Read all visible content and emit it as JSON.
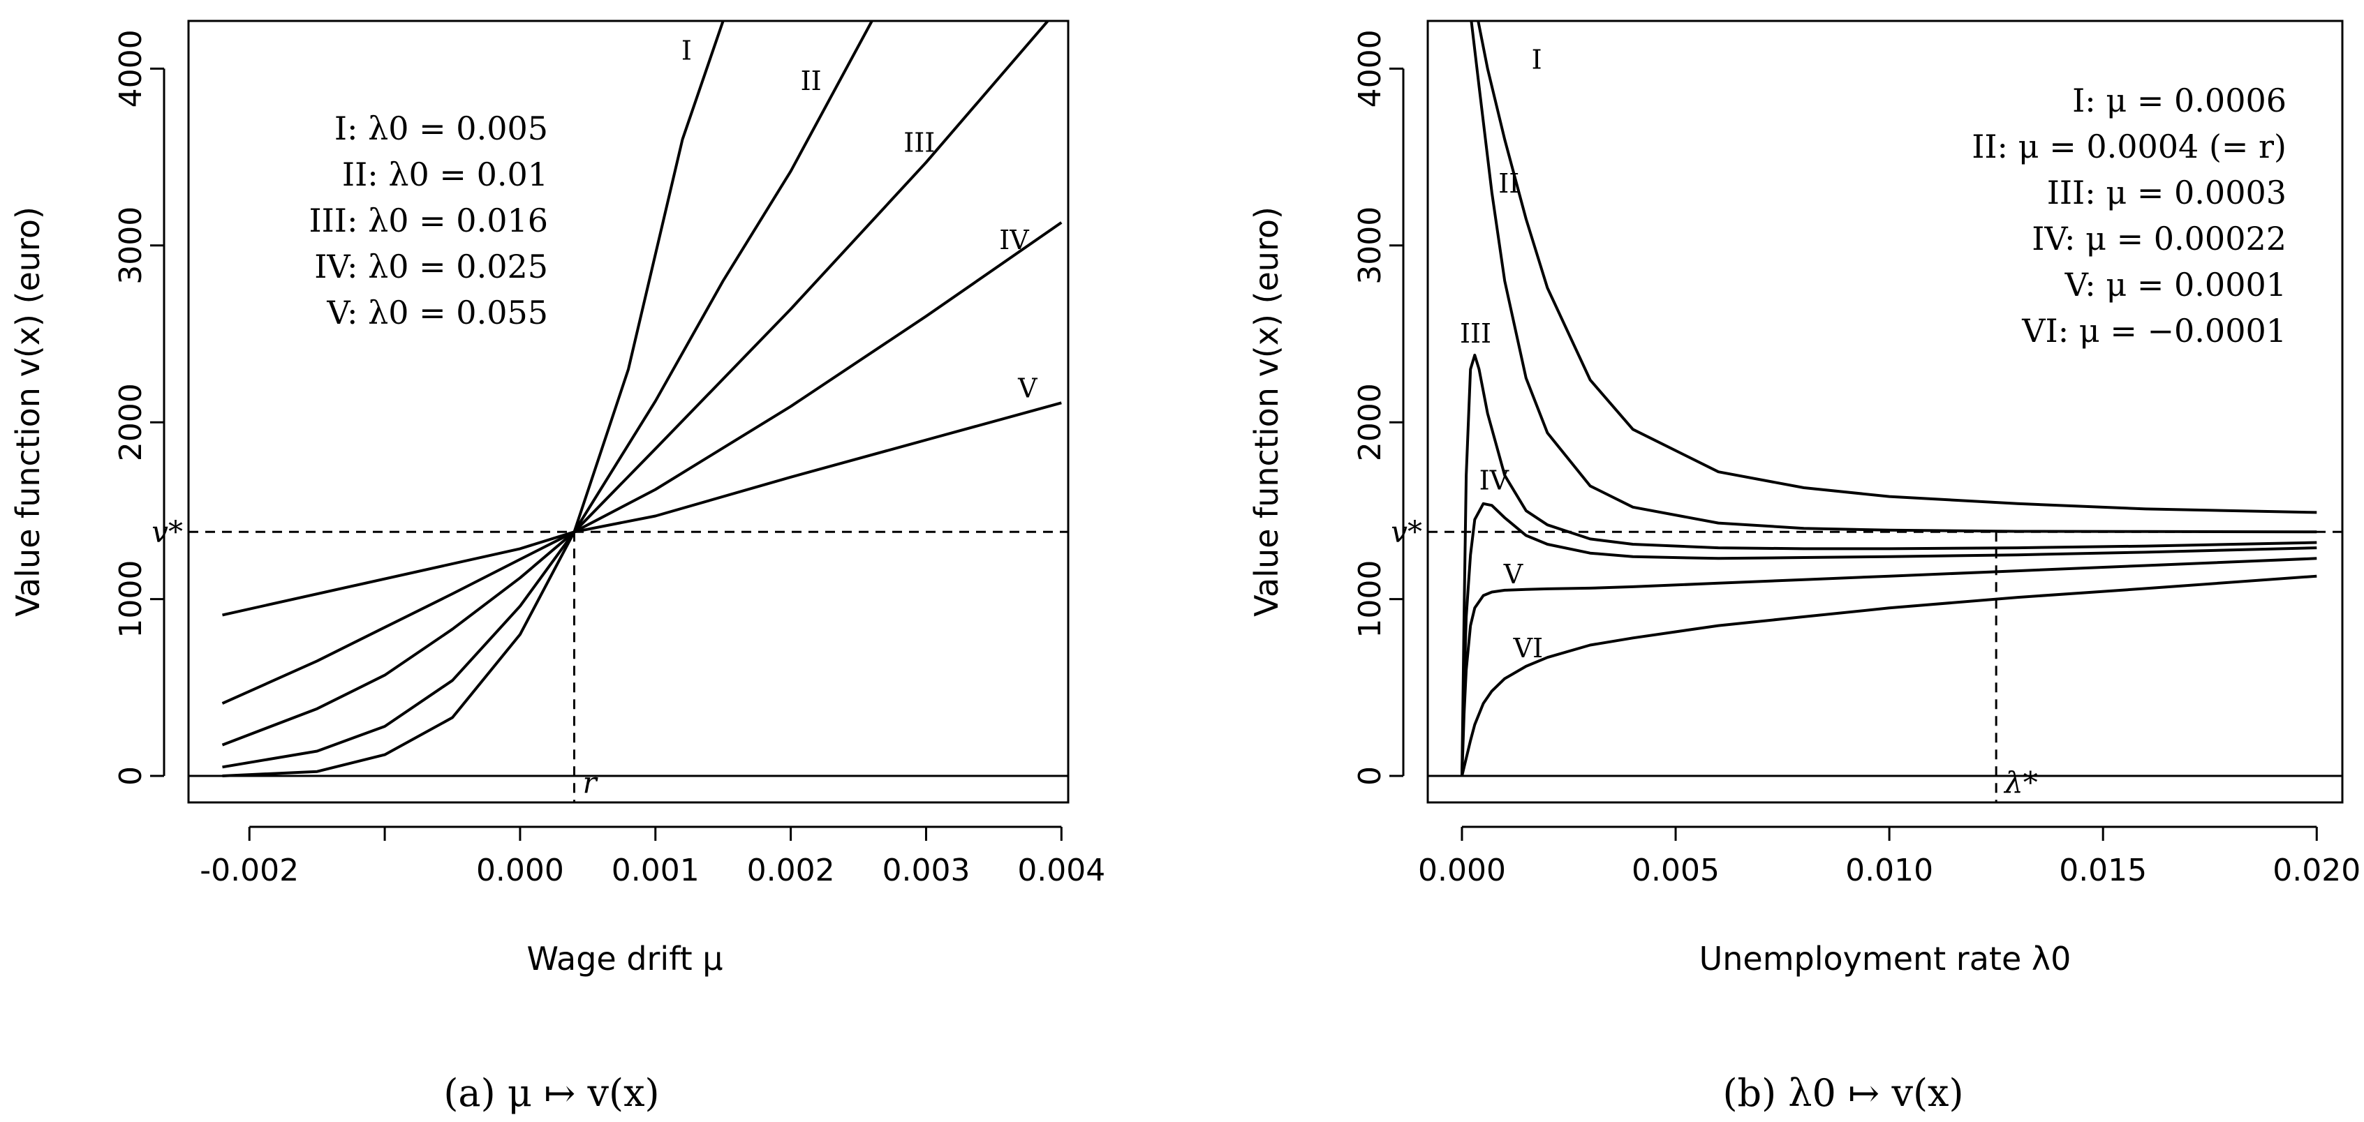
{
  "chart_data": [
    {
      "type": "line",
      "caption": "(a)  μ ↦ v(x)",
      "xlabel": "Wage drift μ",
      "ylabel": "Value function v(x) (euro)",
      "xlim": [
        -0.00245,
        0.00405
      ],
      "ylim": [
        -150,
        4270
      ],
      "xticks": [
        -0.002,
        -0.001,
        0.0,
        0.001,
        0.002,
        0.003,
        0.004
      ],
      "xtick_labels": [
        "-0.002",
        "",
        "0.000",
        "0.001",
        "0.002",
        "0.003",
        "0.004"
      ],
      "yticks": [
        0,
        1000,
        2000,
        3000,
        4000
      ],
      "ytick_labels": [
        "0",
        "1000",
        "2000",
        "3000",
        "4000"
      ],
      "hline": {
        "y": 1380,
        "label": "v*"
      },
      "vline": {
        "x": 0.0004,
        "label": "r"
      },
      "legend": [
        "I:  λ0 = 0.005",
        "II:  λ0 = 0.01",
        "III:  λ0 = 0.016",
        "IV:  λ0 = 0.025",
        "V:  λ0 = 0.055"
      ],
      "series": [
        {
          "name": "I",
          "label_at": [
            0.00123,
            4050
          ],
          "x": [
            -0.0022,
            -0.0015,
            -0.001,
            -0.0005,
            0.0,
            0.0004,
            0.0008,
            0.0012,
            0.0015
          ],
          "y": [
            0,
            25,
            120,
            330,
            800,
            1380,
            2300,
            3600,
            4270
          ]
        },
        {
          "name": "II",
          "label_at": [
            0.00215,
            3880
          ],
          "x": [
            -0.0022,
            -0.0015,
            -0.001,
            -0.0005,
            0.0,
            0.0004,
            0.001,
            0.0015,
            0.002,
            0.0026
          ],
          "y": [
            50,
            140,
            280,
            540,
            960,
            1380,
            2120,
            2800,
            3420,
            4270
          ]
        },
        {
          "name": "III",
          "label_at": [
            0.00295,
            3530
          ],
          "x": [
            -0.0022,
            -0.0015,
            -0.001,
            -0.0005,
            0.0,
            0.0004,
            0.001,
            0.002,
            0.003,
            0.0039
          ],
          "y": [
            175,
            380,
            570,
            830,
            1120,
            1380,
            1850,
            2640,
            3470,
            4270
          ]
        },
        {
          "name": "IV",
          "label_at": [
            0.00365,
            2980
          ],
          "x": [
            -0.0022,
            -0.0015,
            -0.001,
            -0.0005,
            0.0,
            0.0004,
            0.001,
            0.002,
            0.003,
            0.004
          ],
          "y": [
            410,
            650,
            840,
            1030,
            1225,
            1380,
            1620,
            2090,
            2600,
            3130
          ]
        },
        {
          "name": "V",
          "label_at": [
            0.00375,
            2140
          ],
          "x": [
            -0.0022,
            0.0,
            0.0004,
            0.001,
            0.002,
            0.003,
            0.004
          ],
          "y": [
            910,
            1285,
            1380,
            1470,
            1690,
            1900,
            2110
          ]
        }
      ]
    },
    {
      "type": "line",
      "caption": "(b)  λ0 ↦ v(x)",
      "xlabel": "Unemployment rate λ0",
      "ylabel": "Value function v(x) (euro)",
      "xlim": [
        -0.0008,
        0.0206
      ],
      "ylim": [
        -150,
        4270
      ],
      "xticks": [
        0.0,
        0.005,
        0.01,
        0.015,
        0.02
      ],
      "xtick_labels": [
        "0.000",
        "0.005",
        "0.010",
        "0.015",
        "0.020"
      ],
      "yticks": [
        0,
        1000,
        2000,
        3000,
        4000
      ],
      "ytick_labels": [
        "0",
        "1000",
        "2000",
        "3000",
        "4000"
      ],
      "hline": {
        "y": 1380,
        "label": "v*"
      },
      "vline": {
        "x": 0.0125,
        "label": "λ*"
      },
      "legend": [
        "I:  μ = 0.0006",
        "II:  μ = 0.0004 (= r)",
        "III:  μ = 0.0003",
        "IV:  μ = 0.00022",
        "V:  μ = 0.0001",
        "VI:  μ = −0.0001"
      ],
      "series": [
        {
          "name": "I",
          "label_at": [
            0.00175,
            4000
          ],
          "x": [
            0.00038,
            0.0006,
            0.001,
            0.0015,
            0.002,
            0.003,
            0.004,
            0.006,
            0.008,
            0.01,
            0.013,
            0.016,
            0.02
          ],
          "y": [
            4270,
            4000,
            3600,
            3150,
            2760,
            2240,
            1960,
            1720,
            1630,
            1580,
            1540,
            1510,
            1490
          ]
        },
        {
          "name": "II",
          "label_at": [
            0.0011,
            3300
          ],
          "x": [
            0.00022,
            0.0004,
            0.0007,
            0.001,
            0.0015,
            0.002,
            0.003,
            0.004,
            0.006,
            0.008,
            0.01,
            0.013,
            0.016,
            0.02
          ],
          "y": [
            4270,
            3900,
            3300,
            2800,
            2250,
            1940,
            1640,
            1520,
            1430,
            1400,
            1390,
            1383,
            1382,
            1380
          ]
        },
        {
          "name": "III",
          "label_at": [
            0.00032,
            2450
          ],
          "x": [
            0.0,
            5e-05,
            0.0001,
            0.0002,
            0.0003,
            0.0004,
            0.0006,
            0.001,
            0.0015,
            0.002,
            0.003,
            0.004,
            0.006,
            0.008,
            0.01,
            0.013,
            0.016,
            0.02
          ],
          "y": [
            0,
            900,
            1700,
            2300,
            2380,
            2300,
            2050,
            1700,
            1500,
            1420,
            1340,
            1310,
            1290,
            1285,
            1285,
            1290,
            1300,
            1320
          ]
        },
        {
          "name": "IV",
          "label_at": [
            0.00075,
            1620
          ],
          "x": [
            0.0,
            5e-05,
            0.0001,
            0.0002,
            0.0003,
            0.0005,
            0.0007,
            0.001,
            0.0015,
            0.002,
            0.003,
            0.004,
            0.006,
            0.008,
            0.01,
            0.013,
            0.016,
            0.02
          ],
          "y": [
            0,
            500,
            900,
            1250,
            1450,
            1540,
            1530,
            1460,
            1360,
            1310,
            1260,
            1240,
            1230,
            1235,
            1240,
            1250,
            1265,
            1290
          ]
        },
        {
          "name": "V",
          "label_at": [
            0.0012,
            1090
          ],
          "x": [
            0.0,
            5e-05,
            0.0001,
            0.0002,
            0.0003,
            0.0005,
            0.0007,
            0.001,
            0.0015,
            0.002,
            0.003,
            0.004,
            0.006,
            0.008,
            0.01,
            0.013,
            0.016,
            0.02
          ],
          "y": [
            0,
            350,
            600,
            850,
            950,
            1020,
            1040,
            1050,
            1055,
            1058,
            1062,
            1070,
            1090,
            1110,
            1130,
            1160,
            1190,
            1230
          ]
        },
        {
          "name": "VI",
          "label_at": [
            0.00155,
            670
          ],
          "x": [
            0.0,
            0.0001,
            0.0002,
            0.0003,
            0.0005,
            0.0007,
            0.001,
            0.0015,
            0.002,
            0.003,
            0.004,
            0.006,
            0.008,
            0.01,
            0.013,
            0.016,
            0.02
          ],
          "y": [
            0,
            100,
            200,
            290,
            410,
            480,
            550,
            620,
            670,
            740,
            780,
            850,
            900,
            950,
            1010,
            1060,
            1130
          ]
        }
      ]
    }
  ]
}
